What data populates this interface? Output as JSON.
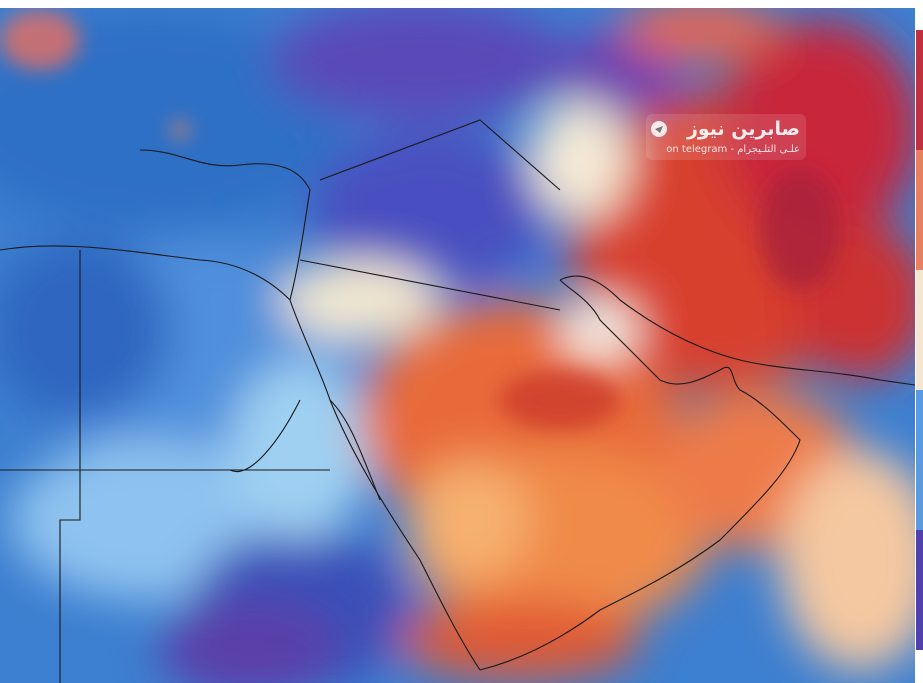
{
  "watermark": {
    "title": "صابرين نيوز",
    "subtitle": "on telegram - علـى التلـيجرام"
  }
}
